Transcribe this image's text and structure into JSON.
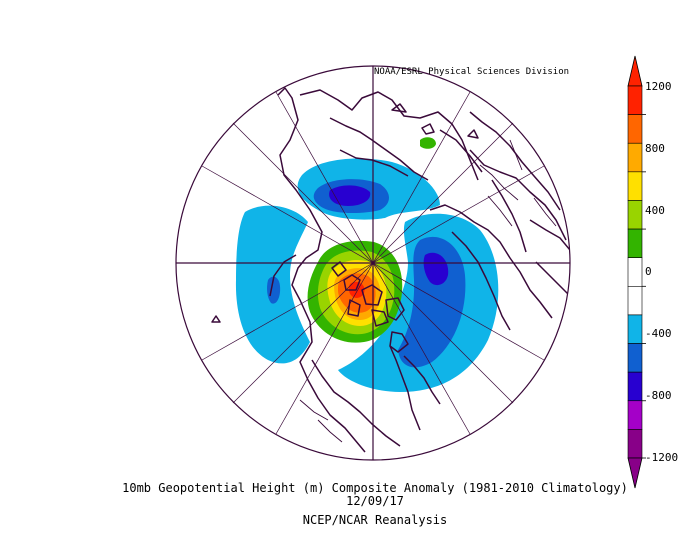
{
  "header": {
    "credit": "NOAA/ESRL Physical Sciences Division"
  },
  "footer": {
    "title": "10mb Geopotential Height (m) Composite Anomaly (1981-2010 Climatology)",
    "date": "12/09/17",
    "source": "NCEP/NCAR Reanalysis"
  },
  "colorbar": {
    "labels": [
      "1200",
      "800",
      "400",
      "0",
      "-400",
      "-800",
      "-1200"
    ],
    "colors": [
      "#ff2200",
      "#ff6600",
      "#ffaa00",
      "#ffe000",
      "#99d400",
      "#33b400",
      "#ffffff",
      "#ffffff",
      "#10b4e8",
      "#1060d0",
      "#2800d0",
      "#a400c8",
      "#880088"
    ]
  },
  "map": {
    "projection": "north polar stereographic",
    "background_color": "#ffffff",
    "coastline_color": "#3a0a3a"
  }
}
